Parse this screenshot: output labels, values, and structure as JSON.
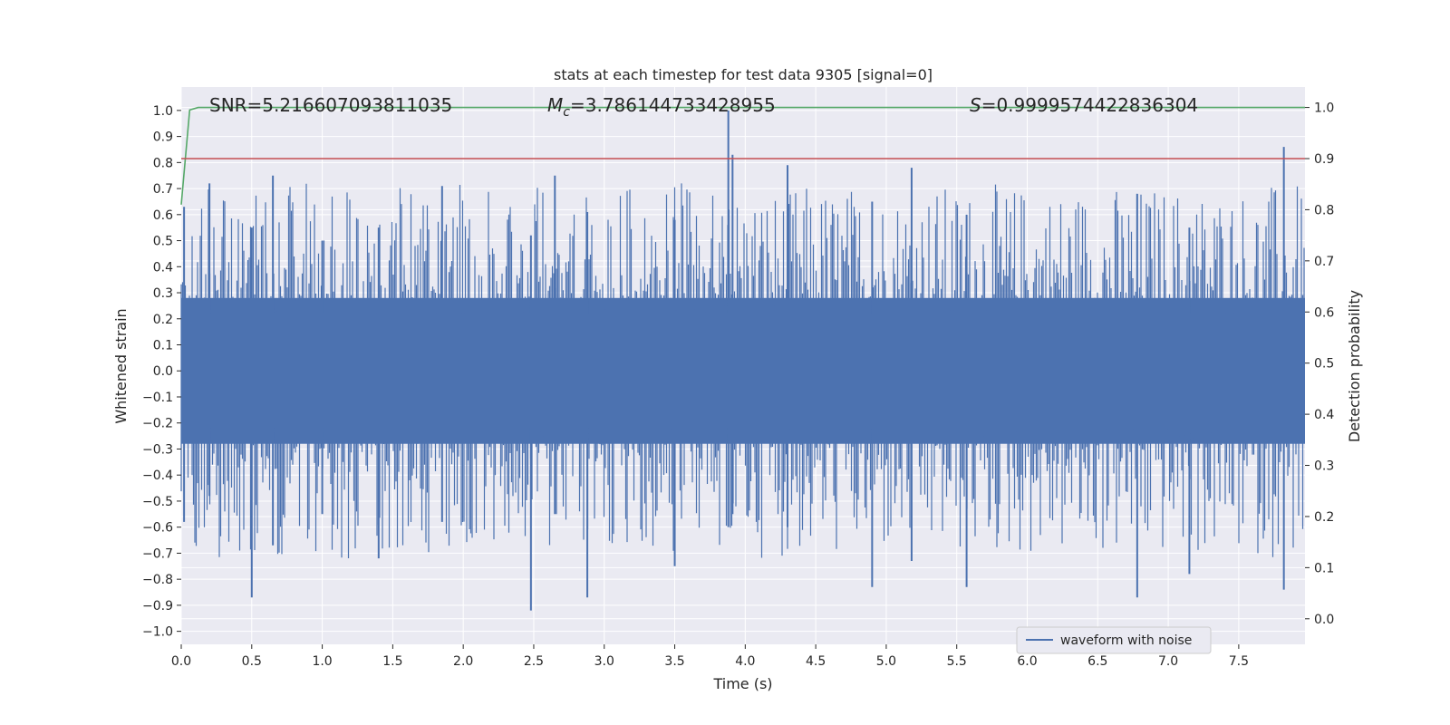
{
  "chart_data": {
    "type": "line",
    "title": "stats at each timestep for test data 9305 [signal=0]",
    "xlabel": "Time (s)",
    "ylabel": "Whitened strain",
    "y2label": "Detection probability",
    "xlim": [
      0.0,
      7.97
    ],
    "ylim": [
      -1.05,
      1.09
    ],
    "y2lim": [
      -0.05,
      1.04
    ],
    "xticks": [
      "0.0",
      "0.5",
      "1.0",
      "1.5",
      "2.0",
      "2.5",
      "3.0",
      "3.5",
      "4.0",
      "4.5",
      "5.0",
      "5.5",
      "6.0",
      "6.5",
      "7.0",
      "7.5"
    ],
    "yticks": [
      "1.0",
      "0.9",
      "0.8",
      "0.7",
      "0.6",
      "0.5",
      "0.4",
      "0.3",
      "0.2",
      "0.1",
      "0.0",
      "−0.1",
      "−0.2",
      "−0.3",
      "−0.4",
      "−0.5",
      "−0.6",
      "−0.7",
      "−0.8",
      "−0.9",
      "−1.0"
    ],
    "y2ticks": [
      "1.0",
      "0.9",
      "0.8",
      "0.7",
      "0.6",
      "0.5",
      "0.4",
      "0.3",
      "0.2",
      "0.1",
      "0.0"
    ],
    "grid": true,
    "legend": {
      "position": "lower-right",
      "entries": [
        "waveform with noise"
      ]
    },
    "annotations": {
      "snr": "SNR=5.216607093811035",
      "mc_symbol": "M",
      "mc_sub": "c",
      "mc_value": "=3.786144733428955",
      "s_symbol": "S",
      "s_value": "=0.9999574422836304"
    },
    "series": [
      {
        "name": "waveform with noise",
        "axis": "left",
        "color": "#4c72b0",
        "note": "dense white-noise strain; peak envelope samples listed",
        "peaks": [
          {
            "t": 0.02,
            "v": 0.63,
            "low": -0.58
          },
          {
            "t": 0.2,
            "v": 0.72,
            "low": -0.48
          },
          {
            "t": 0.5,
            "v": 0.55,
            "low": -0.87
          },
          {
            "t": 0.65,
            "v": 0.75,
            "low": -0.67
          },
          {
            "t": 1.0,
            "v": 0.5,
            "low": -0.55
          },
          {
            "t": 1.4,
            "v": 0.55,
            "low": -0.72
          },
          {
            "t": 1.85,
            "v": 0.71,
            "low": -0.58
          },
          {
            "t": 2.48,
            "v": 0.52,
            "low": -0.92
          },
          {
            "t": 2.65,
            "v": 0.75,
            "low": -0.55
          },
          {
            "t": 2.88,
            "v": 0.61,
            "low": -0.87
          },
          {
            "t": 3.5,
            "v": 0.58,
            "low": -0.75
          },
          {
            "t": 3.88,
            "v": 1.0,
            "low": -0.6
          },
          {
            "t": 3.91,
            "v": 0.83,
            "low": -0.55
          },
          {
            "t": 4.3,
            "v": 0.79,
            "low": -0.6
          },
          {
            "t": 4.9,
            "v": 0.65,
            "low": -0.83
          },
          {
            "t": 5.18,
            "v": 0.78,
            "low": -0.73
          },
          {
            "t": 5.57,
            "v": 0.6,
            "low": -0.83
          },
          {
            "t": 6.78,
            "v": 0.68,
            "low": -0.87
          },
          {
            "t": 7.15,
            "v": 0.55,
            "low": -0.78
          },
          {
            "t": 7.82,
            "v": 0.86,
            "low": -0.84
          }
        ],
        "envelope": 0.28
      },
      {
        "name": "detection probability",
        "axis": "right",
        "color": "#55a868",
        "x": [
          0.0,
          0.06,
          0.12,
          7.97
        ],
        "y": [
          0.81,
          0.995,
          1.0,
          1.0
        ]
      },
      {
        "name": "threshold",
        "axis": "right",
        "color": "#c44e52",
        "x": [
          0.0,
          7.97
        ],
        "y": [
          0.9,
          0.9
        ]
      }
    ]
  }
}
